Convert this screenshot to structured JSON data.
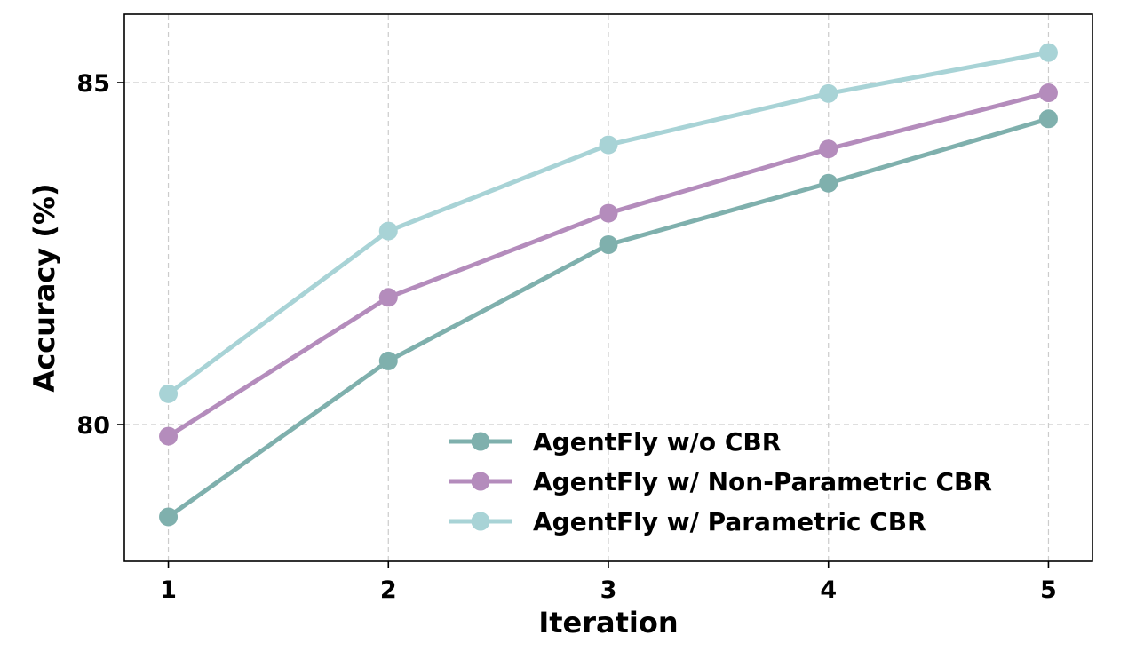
{
  "chart_data": {
    "type": "line",
    "xlabel": "Iteration",
    "ylabel": "Accuracy (%)",
    "x": [
      1,
      2,
      3,
      4,
      5
    ],
    "xlim": [
      0.8,
      5.2
    ],
    "ylim": [
      78,
      86
    ],
    "yticks": [
      80,
      85
    ],
    "grid": true,
    "legend_position": "bottom-right",
    "series": [
      {
        "name": "AgentFly w/o CBR",
        "color": "#7fb0ad",
        "values": [
          78.65,
          80.93,
          82.63,
          83.53,
          84.47
        ]
      },
      {
        "name": "AgentFly w/ Non-Parametric CBR",
        "color": "#b48cbc",
        "values": [
          79.83,
          81.86,
          83.09,
          84.03,
          84.85
        ]
      },
      {
        "name": "AgentFly w/ Parametric CBR",
        "color": "#a8d3d6",
        "values": [
          80.45,
          82.83,
          84.09,
          84.84,
          85.44
        ]
      }
    ]
  }
}
